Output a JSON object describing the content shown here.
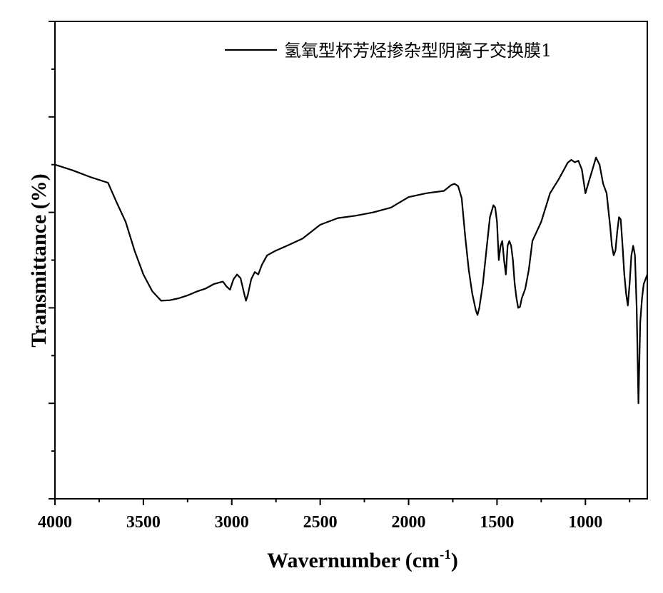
{
  "chart_data": {
    "type": "line",
    "title": "",
    "xlabel": "Wavernumber (cm",
    "xlabel_sup": "-1",
    "xlabel_close": ")",
    "ylabel": "Transmittance (%)",
    "xlim": [
      4000,
      650
    ],
    "ylim": [
      0,
      100
    ],
    "x_reversed": true,
    "y_tick_labels": false,
    "grid": false,
    "legend_position": "top-right",
    "x_ticks": [
      4000,
      3500,
      3000,
      2500,
      2000,
      1500,
      1000
    ],
    "x_tick_labels": [
      "4000",
      "3500",
      "3000",
      "2500",
      "2000",
      "1500",
      "1000"
    ],
    "series": [
      {
        "name": "氢氧型杯芳烃掺杂型阴离子交换膜1",
        "color": "#000000",
        "x": [
          4000,
          3900,
          3800,
          3700,
          3650,
          3600,
          3550,
          3500,
          3450,
          3400,
          3350,
          3300,
          3250,
          3200,
          3150,
          3100,
          3050,
          3030,
          3010,
          2990,
          2970,
          2950,
          2930,
          2920,
          2910,
          2890,
          2870,
          2850,
          2830,
          2800,
          2750,
          2700,
          2600,
          2500,
          2400,
          2300,
          2200,
          2100,
          2000,
          1900,
          1800,
          1760,
          1740,
          1720,
          1700,
          1680,
          1660,
          1640,
          1620,
          1610,
          1600,
          1580,
          1560,
          1540,
          1520,
          1510,
          1500,
          1490,
          1480,
          1470,
          1460,
          1450,
          1440,
          1430,
          1420,
          1410,
          1400,
          1390,
          1380,
          1370,
          1360,
          1350,
          1340,
          1320,
          1300,
          1250,
          1200,
          1150,
          1100,
          1080,
          1060,
          1040,
          1020,
          1000,
          980,
          960,
          940,
          920,
          900,
          880,
          860,
          850,
          840,
          830,
          820,
          810,
          800,
          790,
          780,
          770,
          760,
          750,
          740,
          730,
          720,
          710,
          700,
          690,
          680,
          670,
          660,
          650
        ],
        "y": [
          70.0,
          68.8,
          67.4,
          66.2,
          62.0,
          58.0,
          52.0,
          47.0,
          43.5,
          41.5,
          41.6,
          42.0,
          42.6,
          43.4,
          44.0,
          45.0,
          45.5,
          44.5,
          43.8,
          46.0,
          47.0,
          46.2,
          43.0,
          41.5,
          42.6,
          46.0,
          47.5,
          47.0,
          49.0,
          51.0,
          52.0,
          52.8,
          54.5,
          57.4,
          58.8,
          59.3,
          60.0,
          61.0,
          63.2,
          64.0,
          64.5,
          65.7,
          66.0,
          65.5,
          63.0,
          55.0,
          48.0,
          43.0,
          39.5,
          38.5,
          40.0,
          45.0,
          52.0,
          59.0,
          61.5,
          61.0,
          58.0,
          50.0,
          53.0,
          54.0,
          50.0,
          47.0,
          53.0,
          54.0,
          53.0,
          50.0,
          45.0,
          42.0,
          40.0,
          40.2,
          42.0,
          43.0,
          44.0,
          48.0,
          54.0,
          58.0,
          64.0,
          67.0,
          70.4,
          71.0,
          70.5,
          70.8,
          69.0,
          64.0,
          66.5,
          69.0,
          71.5,
          70.0,
          66.0,
          64.0,
          57.0,
          53.0,
          51.0,
          52.0,
          56.0,
          59.0,
          58.5,
          53.0,
          47.0,
          43.0,
          40.5,
          45.0,
          51.0,
          53.0,
          51.0,
          40.0,
          20.0,
          37.0,
          42.0,
          45.0,
          46.0,
          47.0
        ]
      }
    ]
  }
}
